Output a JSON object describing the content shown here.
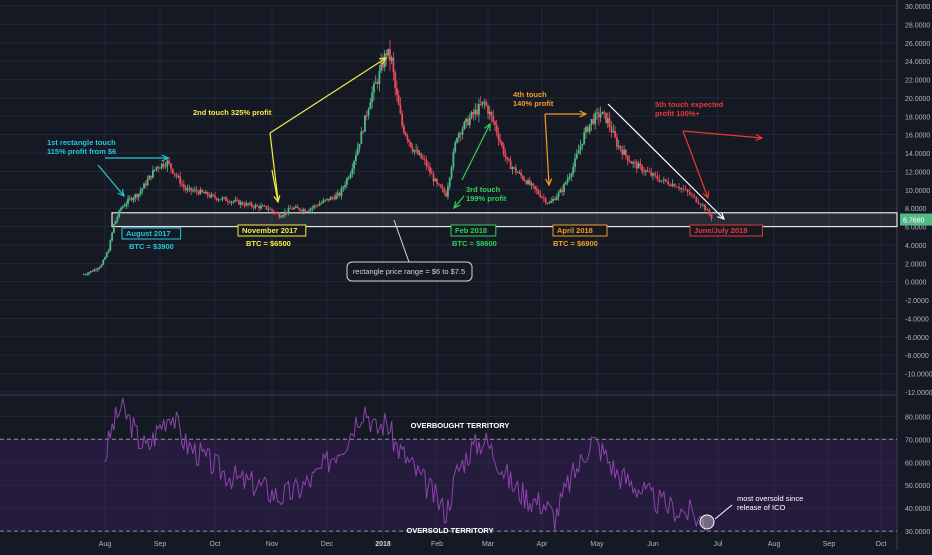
{
  "chart_data": [
    {
      "type": "candlestick",
      "ylim": [
        -12,
        30
      ],
      "y_ticks": [
        "30.0000",
        "28.0000",
        "26.0000",
        "24.0000",
        "22.0000",
        "20.0000",
        "18.0000",
        "16.0000",
        "14.0000",
        "12.0000",
        "10.0000",
        "8.0000",
        "6.0000",
        "4.0000",
        "2.0000",
        "0.0000",
        "-2.0000",
        "-4.0000",
        "-6.0000",
        "-8.0000",
        "-10.0000",
        "-12.0000"
      ],
      "y_tick_values": [
        30,
        28,
        26,
        24,
        22,
        20,
        18,
        16,
        14,
        12,
        10,
        8,
        6,
        4,
        2,
        0,
        -2,
        -4,
        -6,
        -8,
        -10,
        -12
      ],
      "x_ticks": [
        "Aug",
        "Sep",
        "Oct",
        "Nov",
        "Dec",
        "2018",
        "Feb",
        "Mar",
        "Apr",
        "May",
        "Jun",
        "Jul",
        "Aug",
        "Sep",
        "Oct"
      ],
      "last_price_label": "6.7660",
      "series": [
        {
          "x": [
            "2017-07-20",
            "2017-07-25",
            "2017-07-30",
            "2017-08-03",
            "2017-08-06",
            "2017-08-10",
            "2017-08-15",
            "2017-08-20",
            "2017-08-25",
            "2017-08-30",
            "2017-09-05",
            "2017-09-10",
            "2017-09-15",
            "2017-09-22",
            "2017-09-30",
            "2017-10-10",
            "2017-10-20",
            "2017-10-30",
            "2017-11-05",
            "2017-11-12",
            "2017-11-20",
            "2017-11-30",
            "2017-12-08",
            "2017-12-14",
            "2017-12-20",
            "2017-12-25",
            "2017-12-29",
            "2018-01-03",
            "2018-01-06",
            "2018-01-08",
            "2018-01-12",
            "2018-01-18",
            "2018-01-25",
            "2018-02-01",
            "2018-02-06",
            "2018-02-12",
            "2018-02-20",
            "2018-02-27",
            "2018-03-05",
            "2018-03-12",
            "2018-03-20",
            "2018-03-28",
            "2018-04-05",
            "2018-04-12",
            "2018-04-18",
            "2018-04-24",
            "2018-04-28",
            "2018-05-03",
            "2018-05-07",
            "2018-05-12",
            "2018-05-20",
            "2018-05-28",
            "2018-06-05",
            "2018-06-12",
            "2018-06-18",
            "2018-06-24",
            "2018-06-28"
          ],
          "y": [
            0.8,
            1.2,
            1.8,
            3.5,
            6.2,
            8.0,
            9.0,
            9.6,
            11.0,
            12.5,
            13.0,
            11.5,
            10.0,
            9.8,
            9.2,
            8.8,
            8.3,
            8.0,
            7.2,
            8.0,
            7.8,
            8.8,
            9.5,
            12.0,
            16.0,
            20.0,
            22.0,
            25.0,
            24.0,
            21.0,
            17.0,
            14.5,
            13.0,
            10.5,
            9.5,
            16.0,
            18.0,
            19.5,
            17.0,
            13.0,
            11.5,
            10.0,
            8.5,
            10.0,
            12.5,
            16.0,
            17.5,
            18.3,
            17.5,
            15.0,
            13.0,
            12.0,
            11.0,
            10.5,
            9.5,
            8.3,
            7.0
          ]
        }
      ],
      "annotations": [
        {
          "text": "1st rectangle touch\n115% profit from $6",
          "color": "#26c6da"
        },
        {
          "text": "2nd touch 325% profit",
          "color": "#f7ec46"
        },
        {
          "text": "3rd touch\n199% profit",
          "color": "#30d158"
        },
        {
          "text": "4th touch\n140% profit",
          "color": "#f39c26"
        },
        {
          "text": "5th touch expected\nprofit 100%+",
          "color": "#e53935"
        },
        {
          "text": "August 2017",
          "color": "#26c6da"
        },
        {
          "text": "BTC = $3900",
          "color": "#26c6da"
        },
        {
          "text": "November 2017",
          "color": "#f7ec46"
        },
        {
          "text": "BTC = $6500",
          "color": "#f7ec46"
        },
        {
          "text": "Feb 2018",
          "color": "#30d158"
        },
        {
          "text": "BTC = $8600",
          "color": "#30d158"
        },
        {
          "text": "April 2018",
          "color": "#f39c26"
        },
        {
          "text": "BTC = $6900",
          "color": "#f39c26"
        },
        {
          "text": "June/July 2018",
          "color": "#e53935"
        },
        {
          "text": "rectangle price range = $6 to $7.5",
          "color": "#d0d4dc"
        }
      ]
    },
    {
      "type": "line",
      "title": "",
      "ylim": [
        27,
        88
      ],
      "y_ticks": [
        "80.0000",
        "70.0000",
        "60.0000",
        "50.0000",
        "40.0000",
        "30.0000"
      ],
      "y_tick_values": [
        80,
        70,
        60,
        50,
        40,
        30
      ],
      "band": [
        30,
        70
      ],
      "series": [
        {
          "x": [
            "2017-08-01",
            "2017-08-05",
            "2017-08-10",
            "2017-08-15",
            "2017-08-20",
            "2017-08-25",
            "2017-09-01",
            "2017-09-07",
            "2017-09-15",
            "2017-09-25",
            "2017-10-05",
            "2017-10-15",
            "2017-10-25",
            "2017-11-05",
            "2017-11-15",
            "2017-11-25",
            "2017-12-05",
            "2017-12-12",
            "2017-12-18",
            "2017-12-22",
            "2017-12-28",
            "2018-01-03",
            "2018-01-08",
            "2018-01-14",
            "2018-01-22",
            "2018-01-30",
            "2018-02-06",
            "2018-02-12",
            "2018-02-20",
            "2018-02-27",
            "2018-03-06",
            "2018-03-15",
            "2018-03-25",
            "2018-04-02",
            "2018-04-08",
            "2018-04-15",
            "2018-04-22",
            "2018-04-28",
            "2018-05-05",
            "2018-05-12",
            "2018-05-22",
            "2018-06-01",
            "2018-06-10",
            "2018-06-18",
            "2018-06-25"
          ],
          "y": [
            62,
            75,
            84,
            78,
            70,
            66,
            76,
            82,
            68,
            62,
            56,
            52,
            50,
            45,
            48,
            54,
            64,
            70,
            80,
            84,
            74,
            78,
            68,
            62,
            54,
            46,
            38,
            56,
            66,
            70,
            62,
            50,
            44,
            42,
            36,
            50,
            60,
            70,
            64,
            55,
            50,
            44,
            40,
            38,
            34
          ]
        }
      ],
      "annotations": [
        {
          "text": "OVERBOUGHT TERRITORY",
          "color": "#ffffff"
        },
        {
          "text": "OVERSOLD TERRITORY",
          "color": "#ffffff"
        },
        {
          "text": "most oversold since\nrelease of ICO",
          "color": "#ffffff"
        }
      ]
    }
  ]
}
